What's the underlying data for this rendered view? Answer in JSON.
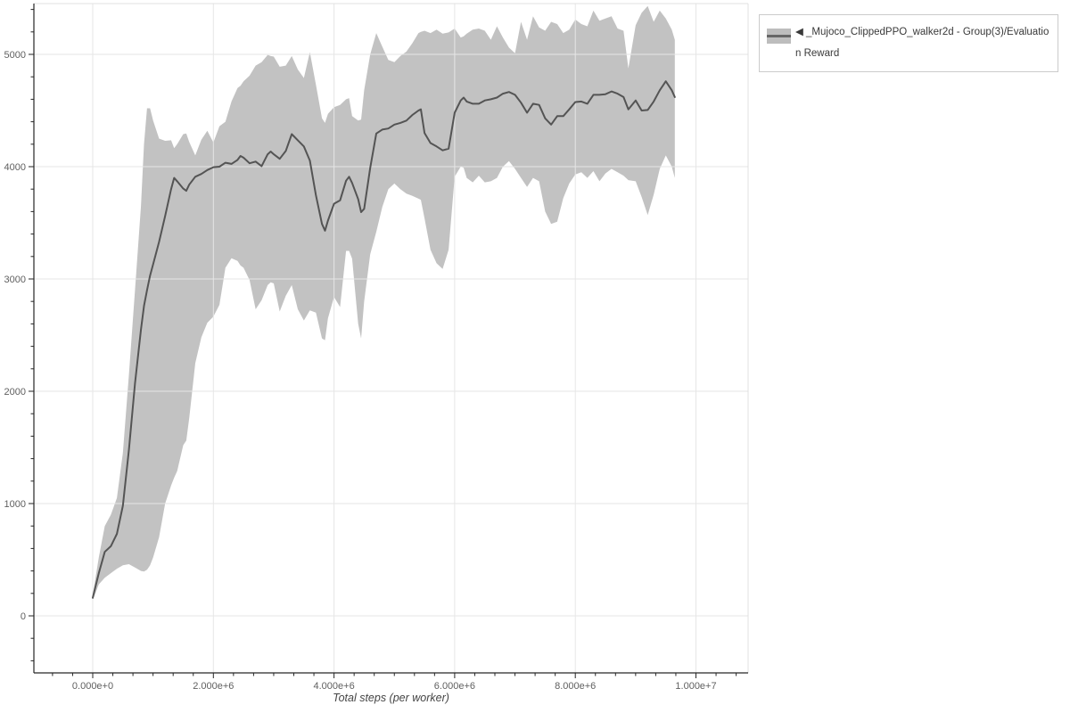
{
  "legend": {
    "items": [
      {
        "label": "◀ _Mujoco_ClippedPPO_walker2d - Group(3)/Evaluation Reward",
        "lines": [
          "◀ _Mujoco_ClippedPPO_walker2d - Group(3)/Evaluatio",
          "n Reward"
        ],
        "band_color": "#bdbdbd",
        "line_color": "#666666"
      }
    ]
  },
  "colors": {
    "band": "#c2c2c2",
    "line": "#545454",
    "grid": "#e6e6e6",
    "outline": "#e0e0e0",
    "axis": "#262626",
    "tick_label": "#5f5f5f",
    "axis_label": "#454545",
    "legend_border": "#cbcbcb",
    "background": "#ffffff"
  },
  "chart_data": {
    "type": "line",
    "title": "",
    "xlabel": "Total steps (per worker)",
    "ylabel": "",
    "grid": true,
    "legend_position": "top-right-outside",
    "xlim_millions": [
      -0.98,
      10.87
    ],
    "ylim": [
      -510,
      5445
    ],
    "x_ticks": {
      "values_millions": [
        0,
        2,
        4,
        6,
        8,
        10
      ],
      "labels": [
        "0.000e+0",
        "2.000e+6",
        "4.000e+6",
        "6.000e+6",
        "8.000e+6",
        "1.000e+7"
      ],
      "minor_step_millions": 0.3333333
    },
    "y_ticks": {
      "values": [
        0,
        1000,
        2000,
        3000,
        4000,
        5000
      ],
      "labels": [
        "0",
        "1000",
        "2000",
        "3000",
        "4000",
        "5000"
      ],
      "minor_step": 200
    },
    "x_unit": "steps",
    "x_millions": [
      0,
      0.1,
      0.2,
      0.3,
      0.4,
      0.5,
      0.6,
      0.7,
      0.8,
      0.85,
      0.9,
      0.95,
      1.0,
      1.1,
      1.2,
      1.3,
      1.35,
      1.4,
      1.5,
      1.55,
      1.6,
      1.7,
      1.8,
      1.9,
      2.0,
      2.1,
      2.2,
      2.3,
      2.4,
      2.45,
      2.5,
      2.6,
      2.7,
      2.8,
      2.9,
      2.95,
      3.0,
      3.1,
      3.2,
      3.3,
      3.4,
      3.5,
      3.6,
      3.7,
      3.8,
      3.85,
      3.9,
      4.0,
      4.1,
      4.2,
      4.25,
      4.3,
      4.4,
      4.45,
      4.5,
      4.6,
      4.7,
      4.8,
      4.9,
      5.0,
      5.1,
      5.2,
      5.3,
      5.4,
      5.44,
      5.5,
      5.6,
      5.7,
      5.8,
      5.9,
      6.0,
      6.1,
      6.15,
      6.2,
      6.3,
      6.4,
      6.5,
      6.6,
      6.7,
      6.8,
      6.9,
      7.0,
      7.1,
      7.2,
      7.3,
      7.4,
      7.5,
      7.6,
      7.7,
      7.8,
      7.9,
      8.0,
      8.1,
      8.2,
      8.3,
      8.4,
      8.5,
      8.6,
      8.7,
      8.8,
      8.88,
      9.0,
      9.1,
      9.2,
      9.3,
      9.4,
      9.5,
      9.6,
      9.65
    ],
    "series": [
      {
        "name": "_Mujoco_ClippedPPO_walker2d - Group(3)/Evaluation Reward (mean)",
        "values": [
          160,
          380,
          570,
          620,
          730,
          980,
          1480,
          2070,
          2550,
          2760,
          2900,
          3030,
          3130,
          3330,
          3560,
          3800,
          3900,
          3870,
          3805,
          3785,
          3840,
          3910,
          3935,
          3970,
          3995,
          4000,
          4035,
          4025,
          4060,
          4095,
          4080,
          4030,
          4045,
          4005,
          4110,
          4135,
          4110,
          4070,
          4140,
          4290,
          4235,
          4180,
          4055,
          3745,
          3490,
          3430,
          3520,
          3670,
          3700,
          3875,
          3910,
          3855,
          3710,
          3595,
          3625,
          3990,
          4295,
          4330,
          4340,
          4375,
          4390,
          4410,
          4460,
          4500,
          4510,
          4300,
          4210,
          4180,
          4145,
          4160,
          4480,
          4590,
          4615,
          4580,
          4560,
          4560,
          4590,
          4600,
          4615,
          4650,
          4665,
          4640,
          4570,
          4480,
          4560,
          4550,
          4430,
          4375,
          4450,
          4450,
          4510,
          4575,
          4580,
          4560,
          4640,
          4640,
          4645,
          4670,
          4650,
          4620,
          4510,
          4590,
          4500,
          4505,
          4580,
          4680,
          4760,
          4680,
          4620
        ]
      },
      {
        "name": "std band upper",
        "values": [
          185,
          520,
          800,
          900,
          1050,
          1450,
          2150,
          2900,
          3650,
          4200,
          4520,
          4520,
          4410,
          4250,
          4230,
          4235,
          4165,
          4200,
          4290,
          4295,
          4220,
          4100,
          4240,
          4320,
          4215,
          4360,
          4400,
          4580,
          4700,
          4720,
          4760,
          4810,
          4900,
          4930,
          4995,
          4985,
          4980,
          4890,
          4900,
          4985,
          4865,
          4790,
          5020,
          4730,
          4430,
          4390,
          4470,
          4530,
          4550,
          4600,
          4610,
          4450,
          4410,
          4420,
          4680,
          5000,
          5190,
          5070,
          4950,
          4930,
          4985,
          5025,
          5100,
          5190,
          5200,
          5210,
          5190,
          5220,
          5185,
          5195,
          5230,
          5150,
          5160,
          5185,
          5220,
          5230,
          5210,
          5130,
          5250,
          5150,
          5060,
          5010,
          5290,
          5130,
          5340,
          5240,
          5210,
          5290,
          5270,
          5190,
          5220,
          5310,
          5270,
          5250,
          5390,
          5300,
          5320,
          5340,
          5230,
          5210,
          4875,
          5260,
          5370,
          5430,
          5290,
          5390,
          5320,
          5220,
          5130
        ]
      },
      {
        "name": "std band lower",
        "values": [
          140,
          280,
          340,
          380,
          420,
          450,
          460,
          430,
          400,
          395,
          410,
          450,
          520,
          700,
          1000,
          1160,
          1230,
          1290,
          1520,
          1560,
          1760,
          2250,
          2480,
          2610,
          2665,
          2770,
          3100,
          3185,
          3160,
          3120,
          3100,
          2990,
          2730,
          2810,
          2945,
          2970,
          2960,
          2710,
          2850,
          2945,
          2730,
          2630,
          2720,
          2700,
          2470,
          2455,
          2650,
          2840,
          2750,
          3250,
          3250,
          3180,
          2600,
          2470,
          2800,
          3220,
          3420,
          3640,
          3800,
          3850,
          3800,
          3760,
          3740,
          3715,
          3705,
          3540,
          3260,
          3140,
          3090,
          3260,
          3910,
          4000,
          3990,
          3900,
          3860,
          3920,
          3860,
          3870,
          3900,
          4000,
          4050,
          3980,
          3900,
          3820,
          3900,
          3870,
          3600,
          3490,
          3510,
          3720,
          3850,
          3930,
          3950,
          3900,
          3960,
          3870,
          3940,
          3980,
          3950,
          3920,
          3880,
          3870,
          3730,
          3570,
          3750,
          3980,
          4100,
          4000,
          3900
        ]
      }
    ]
  }
}
